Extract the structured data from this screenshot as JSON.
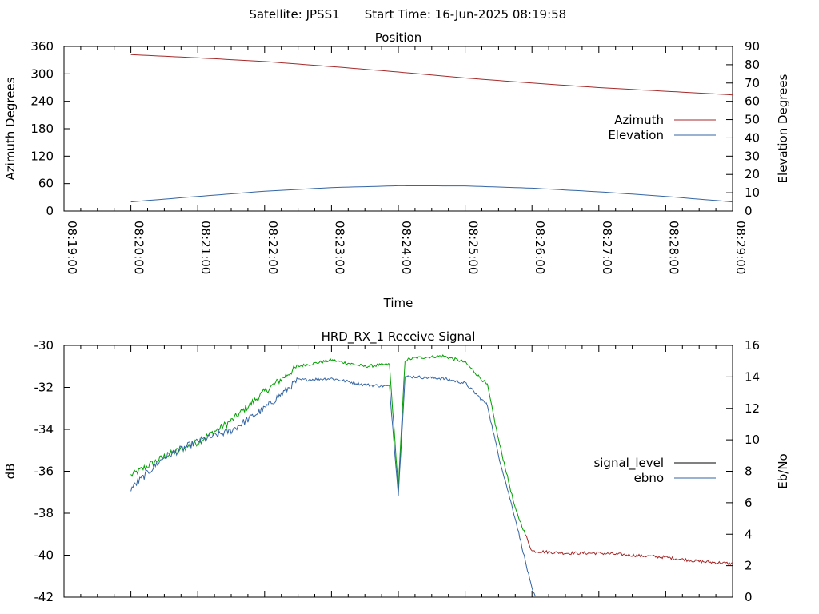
{
  "header": {
    "satellite_label": "Satellite: JPSS1",
    "start_time_label": "Start Time: 16-Jun-2025 08:19:58"
  },
  "chart_data": [
    {
      "type": "line",
      "title": "Position",
      "xlabel": "Time",
      "ylabel_left": "Azimuth Degrees",
      "ylabel_right": "Elevation Degrees",
      "x_ticks": [
        "08:19:00",
        "08:20:00",
        "08:21:00",
        "08:22:00",
        "08:23:00",
        "08:24:00",
        "08:25:00",
        "08:26:00",
        "08:27:00",
        "08:28:00",
        "08:29:00"
      ],
      "x_range": [
        "08:19:00",
        "08:29:00"
      ],
      "ylim_left": [
        0,
        360
      ],
      "ylim_right": [
        0,
        90
      ],
      "y_ticks_left": [
        0,
        60,
        120,
        180,
        240,
        300,
        360
      ],
      "y_ticks_right": [
        0,
        10,
        20,
        30,
        40,
        50,
        60,
        70,
        80,
        90
      ],
      "legend_position": "right",
      "grid": false,
      "series": [
        {
          "name": "Azimuth",
          "axis": "left",
          "color": "#a52a2a",
          "x": [
            "08:20:00",
            "08:21:00",
            "08:22:00",
            "08:23:00",
            "08:24:00",
            "08:25:00",
            "08:26:00",
            "08:27:00",
            "08:28:00",
            "08:29:00"
          ],
          "values": [
            342,
            335,
            327,
            316,
            304,
            291,
            280,
            270,
            262,
            254
          ]
        },
        {
          "name": "Elevation",
          "axis": "right",
          "color": "#3465a4",
          "x": [
            "08:20:00",
            "08:21:00",
            "08:22:00",
            "08:23:00",
            "08:24:00",
            "08:25:00",
            "08:26:00",
            "08:27:00",
            "08:28:00",
            "08:29:00"
          ],
          "values": [
            5,
            8,
            10.8,
            12.8,
            13.8,
            13.7,
            12.5,
            10.5,
            8,
            5
          ]
        }
      ]
    },
    {
      "type": "line",
      "title": "HRD_RX_1 Receive Signal",
      "ylabel_left": "dB",
      "ylabel_right": "Eb/No",
      "ylim_left": [
        -42,
        -30
      ],
      "ylim_right": [
        0,
        16
      ],
      "y_ticks_left": [
        -42,
        -40,
        -38,
        -36,
        -34,
        -32,
        -30
      ],
      "y_ticks_right": [
        0,
        2,
        4,
        6,
        8,
        10,
        12,
        14,
        16
      ],
      "x_range": [
        "08:19:00",
        "08:29:00"
      ],
      "legend_position": "right",
      "grid": false,
      "series": [
        {
          "name": "signal_level",
          "axis": "left",
          "color": "#00a000",
          "color_below_noise": "#a52a2a",
          "x": [
            "08:20:00",
            "08:20:30",
            "08:21:00",
            "08:21:30",
            "08:22:00",
            "08:22:30",
            "08:23:00",
            "08:23:30",
            "08:23:52",
            "08:24:00",
            "08:24:06",
            "08:24:15",
            "08:24:40",
            "08:25:00",
            "08:25:20",
            "08:25:30",
            "08:25:45",
            "08:26:00",
            "08:26:30",
            "08:27:00",
            "08:27:30",
            "08:28:00",
            "08:28:30",
            "08:29:00"
          ],
          "values": [
            -36.2,
            -35.3,
            -34.6,
            -33.6,
            -32.2,
            -31.0,
            -30.7,
            -31.0,
            -30.9,
            -36.8,
            -30.7,
            -30.6,
            -30.5,
            -30.8,
            -31.9,
            -34.5,
            -37.8,
            -39.8,
            -39.9,
            -39.9,
            -40.0,
            -40.1,
            -40.3,
            -40.4
          ]
        },
        {
          "name": "ebno",
          "axis": "right",
          "color": "#3465a4",
          "x": [
            "08:20:00",
            "08:20:30",
            "08:21:00",
            "08:21:30",
            "08:22:00",
            "08:22:30",
            "08:23:00",
            "08:23:30",
            "08:23:52",
            "08:24:00",
            "08:24:06",
            "08:24:15",
            "08:24:40",
            "08:25:00",
            "08:25:20",
            "08:25:30",
            "08:25:45",
            "08:26:00",
            "08:26:03"
          ],
          "values": [
            6.9,
            8.9,
            9.9,
            10.6,
            12.0,
            13.8,
            13.9,
            13.5,
            13.4,
            6.5,
            14.0,
            14.0,
            13.9,
            13.6,
            12.2,
            9.0,
            5.0,
            0.5,
            0.0
          ]
        }
      ]
    }
  ]
}
